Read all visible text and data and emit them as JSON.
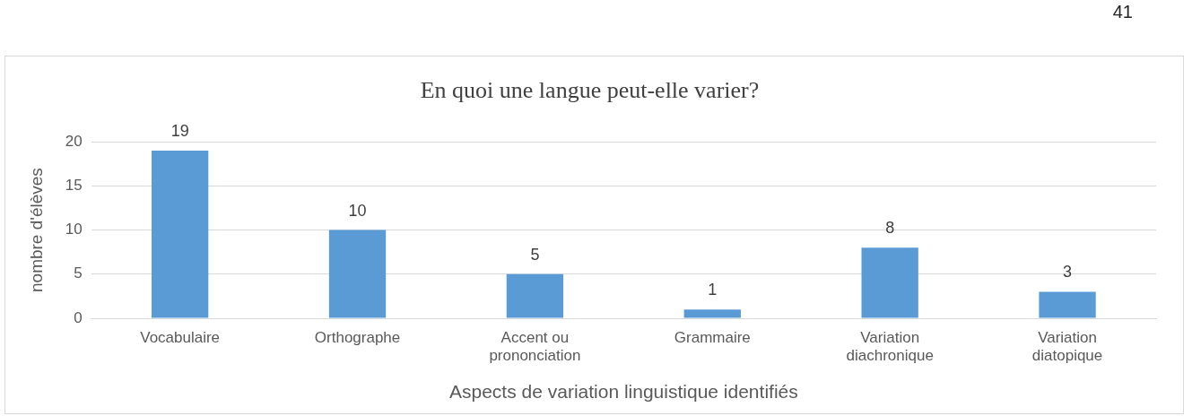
{
  "chart_data": {
    "type": "bar",
    "title": "En quoi une langue peut-elle varier?",
    "xlabel": "Aspects de variation linguistique identifiés",
    "ylabel": "nombre d'élèves",
    "categories": [
      "Vocabulaire",
      "Orthographe",
      "Accent ou prononciation",
      "Grammaire",
      "Variation diachronique",
      "Variation diatopique"
    ],
    "values": [
      19,
      10,
      5,
      1,
      8,
      3
    ],
    "color": "#5b9bd5",
    "ylim": [
      0,
      20
    ],
    "yticks": [
      0,
      5,
      10,
      15,
      20
    ],
    "grid": "y",
    "data_labels": true,
    "annotations": [
      "41"
    ]
  }
}
